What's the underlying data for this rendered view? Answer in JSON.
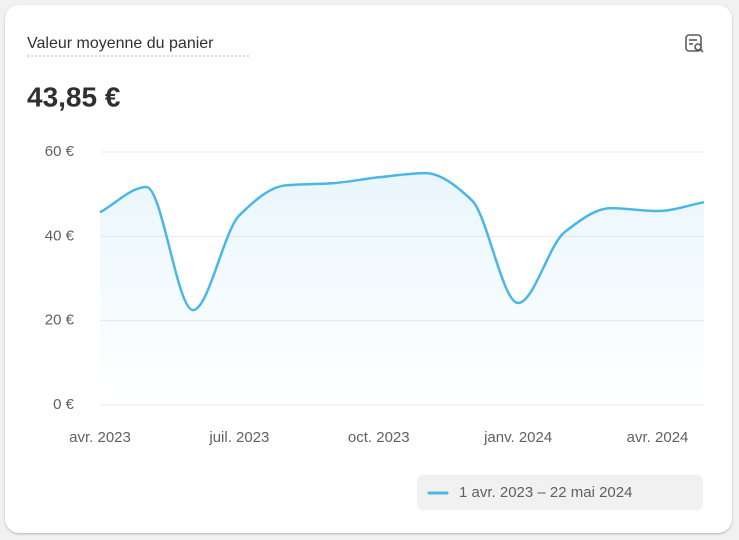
{
  "chart_data": {
    "type": "line",
    "title": "Valeur moyenne du panier",
    "metric": "43,85 €",
    "categories": [
      "avr. 2023",
      null,
      null,
      "juil. 2023",
      null,
      null,
      "oct. 2023",
      null,
      null,
      "janv. 2024",
      null,
      null,
      "avr. 2024",
      null
    ],
    "series": [
      {
        "name": "1 avr. 2023 – 22 mai 2024",
        "color": "#4bb6e8",
        "values": [
          45.7,
          51.7,
          22.5,
          45,
          52.1,
          52.6,
          54,
          55,
          48.6,
          24.2,
          41,
          46.7,
          46,
          48.1
        ]
      }
    ],
    "ylim": [
      0,
      60
    ],
    "yticks": [
      {
        "value": 0,
        "label": "0 €"
      },
      {
        "value": 20,
        "label": "20 €"
      },
      {
        "value": 40,
        "label": "40 €"
      },
      {
        "value": 60,
        "label": "60 €"
      }
    ],
    "grid": true
  }
}
